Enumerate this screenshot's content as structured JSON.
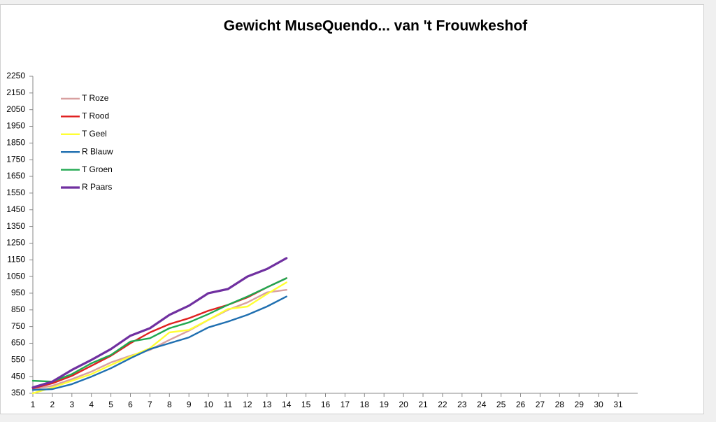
{
  "chart_data": {
    "type": "line",
    "title": "Gewicht MuseQuendo... van 't Frouwkeshof",
    "categories": [
      "1",
      "2",
      "3",
      "4",
      "5",
      "6",
      "7",
      "8",
      "9",
      "10",
      "11",
      "12",
      "13",
      "14",
      "15",
      "16",
      "17",
      "18",
      "19",
      "20",
      "21",
      "22",
      "23",
      "24",
      "25",
      "26",
      "27",
      "28",
      "29",
      "30",
      "31"
    ],
    "series": [
      {
        "name": "T Roze",
        "color": "#d8a0a0",
        "values": [
          375,
          395,
          435,
          480,
          535,
          575,
          610,
          670,
          725,
          790,
          850,
          895,
          955,
          970,
          null,
          null,
          null,
          null,
          null,
          null,
          null,
          null,
          null,
          null,
          null,
          null,
          null,
          null,
          null,
          null,
          null
        ]
      },
      {
        "name": "T Rood",
        "color": "#e02020",
        "values": [
          380,
          410,
          455,
          515,
          575,
          650,
          715,
          765,
          800,
          845,
          880,
          925,
          985,
          1040,
          null,
          null,
          null,
          null,
          null,
          null,
          null,
          null,
          null,
          null,
          null,
          null,
          null,
          null,
          null,
          null,
          null
        ]
      },
      {
        "name": "T Geel",
        "color": "#ffff33",
        "values": [
          350,
          385,
          425,
          465,
          520,
          570,
          620,
          715,
          730,
          790,
          855,
          870,
          945,
          1015,
          null,
          null,
          null,
          null,
          null,
          null,
          null,
          null,
          null,
          null,
          null,
          null,
          null,
          null,
          null,
          null,
          null
        ]
      },
      {
        "name": "R Blauw",
        "color": "#1f6fb0",
        "values": [
          370,
          375,
          405,
          450,
          500,
          560,
          615,
          650,
          685,
          745,
          780,
          820,
          870,
          930,
          null,
          null,
          null,
          null,
          null,
          null,
          null,
          null,
          null,
          null,
          null,
          null,
          null,
          null,
          null,
          null,
          null
        ]
      },
      {
        "name": "T Groen",
        "color": "#20a850",
        "values": [
          425,
          420,
          465,
          530,
          580,
          660,
          680,
          740,
          775,
          825,
          880,
          930,
          985,
          1040,
          null,
          null,
          null,
          null,
          null,
          null,
          null,
          null,
          null,
          null,
          null,
          null,
          null,
          null,
          null,
          null,
          null
        ]
      },
      {
        "name": "R Paars",
        "color": "#7030a0",
        "values": [
          385,
          420,
          490,
          550,
          615,
          695,
          740,
          820,
          875,
          950,
          975,
          1050,
          1095,
          1160,
          null,
          null,
          null,
          null,
          null,
          null,
          null,
          null,
          null,
          null,
          null,
          null,
          null,
          null,
          null,
          null,
          null
        ]
      }
    ],
    "ylim": [
      350,
      2250
    ],
    "yticks": [
      350,
      450,
      550,
      650,
      750,
      850,
      950,
      1050,
      1150,
      1250,
      1350,
      1450,
      1550,
      1650,
      1750,
      1850,
      1950,
      2050,
      2150,
      2250
    ],
    "grid": false,
    "legend": "top-left"
  }
}
